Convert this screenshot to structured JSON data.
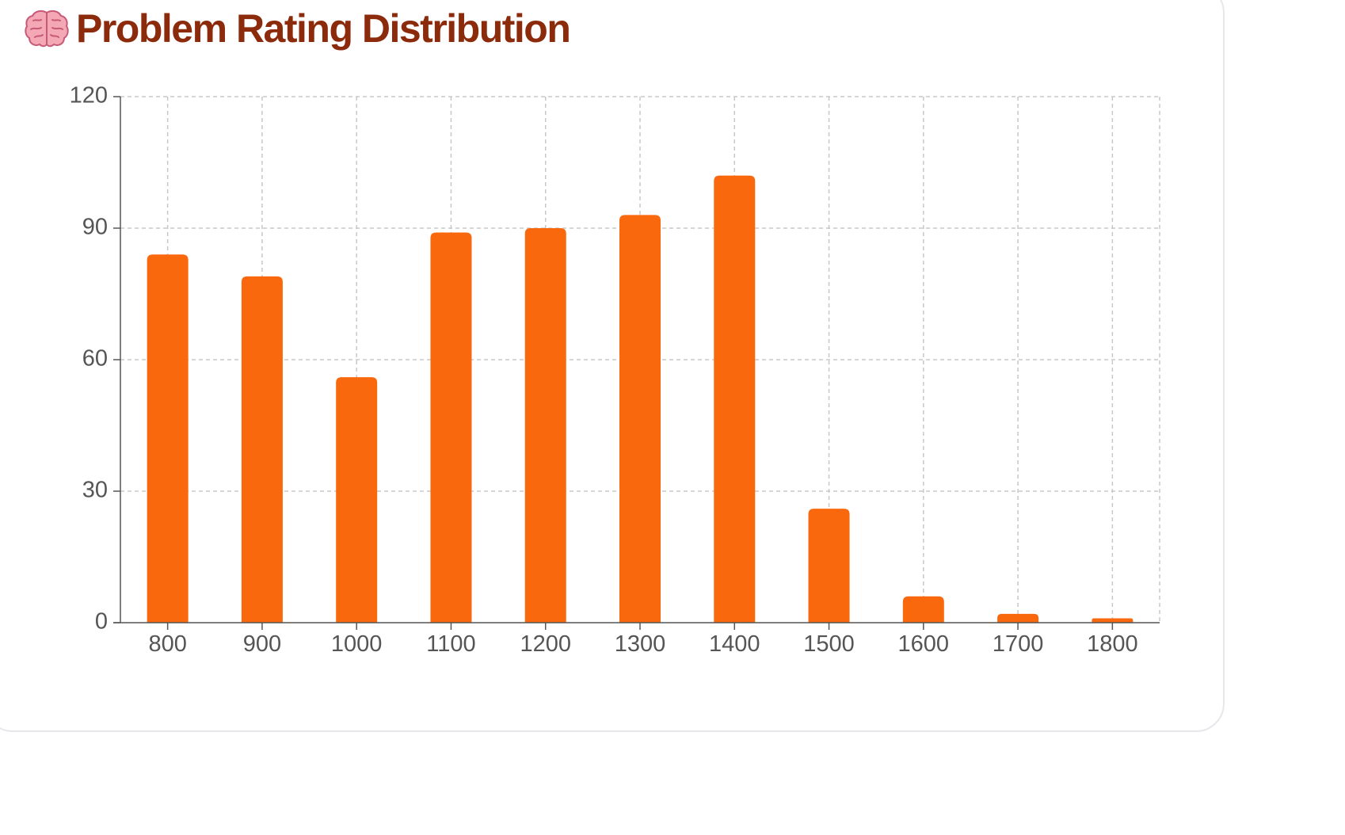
{
  "title": "Problem Rating Distribution",
  "title_icon": "brain-icon",
  "colors": {
    "title": "#8c2a0c",
    "bar": "#f9680d",
    "grid": "#c8c8c8",
    "axis": "#555555",
    "tick_text": "#555555",
    "card_border": "#e5e7eb"
  },
  "chart_data": {
    "type": "bar",
    "categories": [
      "800",
      "900",
      "1000",
      "1100",
      "1200",
      "1300",
      "1400",
      "1500",
      "1600",
      "1700",
      "1800"
    ],
    "values": [
      84,
      79,
      56,
      89,
      90,
      93,
      102,
      26,
      6,
      2,
      1
    ],
    "ylim": [
      0,
      120
    ],
    "yticks": [
      "0",
      "30",
      "60",
      "90",
      "120"
    ],
    "grid": true,
    "legend": "none"
  }
}
